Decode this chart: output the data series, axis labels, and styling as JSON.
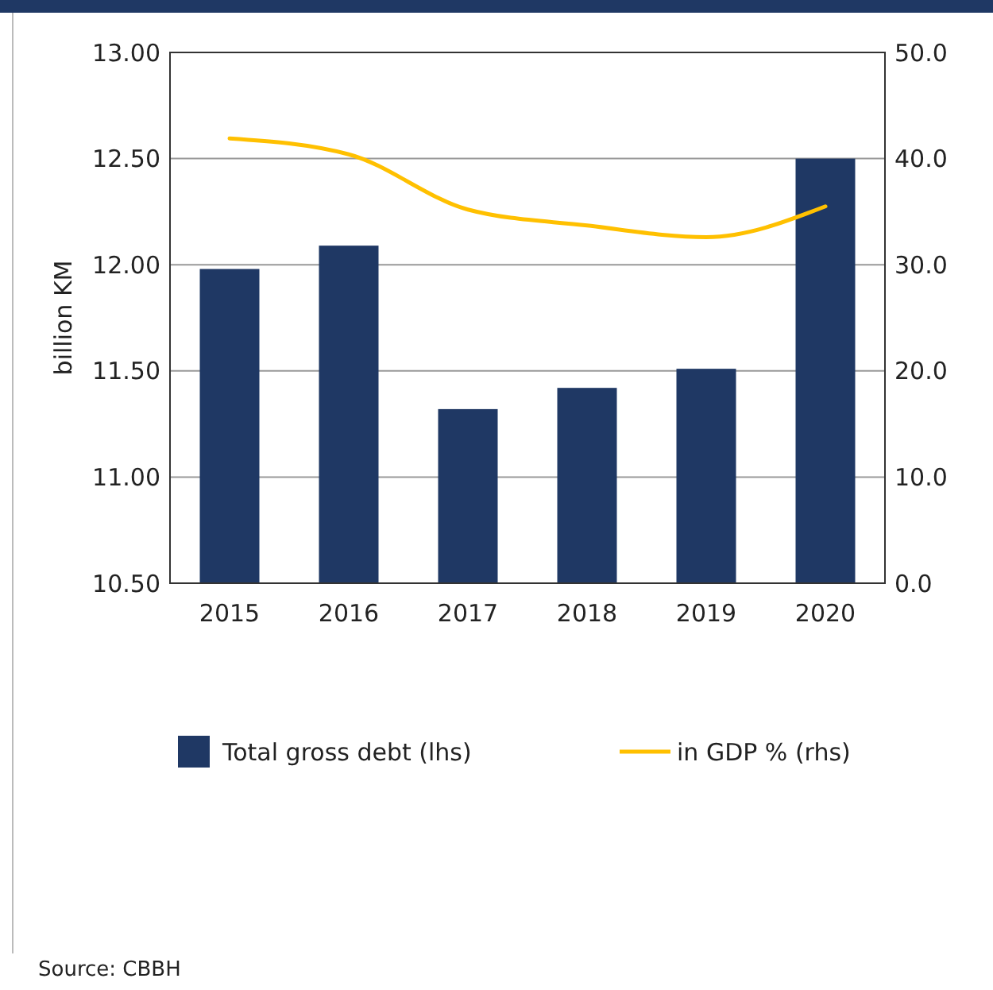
{
  "chart_data": {
    "type": "bar",
    "ylabel": "billion KM",
    "categories": [
      "2015",
      "2016",
      "2017",
      "2018",
      "2019",
      "2020"
    ],
    "series": [
      {
        "name": "Total gross debt (lhs)",
        "color": "#1f3864",
        "values": [
          11.98,
          12.09,
          11.32,
          11.42,
          11.51,
          12.5
        ]
      },
      {
        "name": "in GDP % (rhs)",
        "type": "line",
        "axis": "y2",
        "color": "#ffc000",
        "values": [
          41.9,
          40.4,
          35.2,
          33.7,
          32.6,
          35.5
        ]
      }
    ],
    "ylim": [
      10.5,
      13
    ],
    "yticks": [
      {
        "value": 10.5,
        "label": "10.50"
      },
      {
        "value": 11,
        "label": "11.00"
      },
      {
        "value": 11.5,
        "label": "11.50"
      },
      {
        "value": 12,
        "label": "12.00"
      },
      {
        "value": 12.5,
        "label": "12.50"
      },
      {
        "value": 13,
        "label": "13.00"
      }
    ],
    "y2lim": [
      0,
      50
    ],
    "y2ticks": [
      {
        "value": 0,
        "label": "0.0"
      },
      {
        "value": 10,
        "label": "10.0"
      },
      {
        "value": 20,
        "label": "20.0"
      },
      {
        "value": 30,
        "label": "30.0"
      },
      {
        "value": 40,
        "label": "40.0"
      },
      {
        "value": 50,
        "label": "50.0"
      }
    ],
    "grid": "y",
    "legend": "bottom",
    "line_style": "solid",
    "marker": "none",
    "annotations": [
      "Source: CBBH"
    ]
  }
}
